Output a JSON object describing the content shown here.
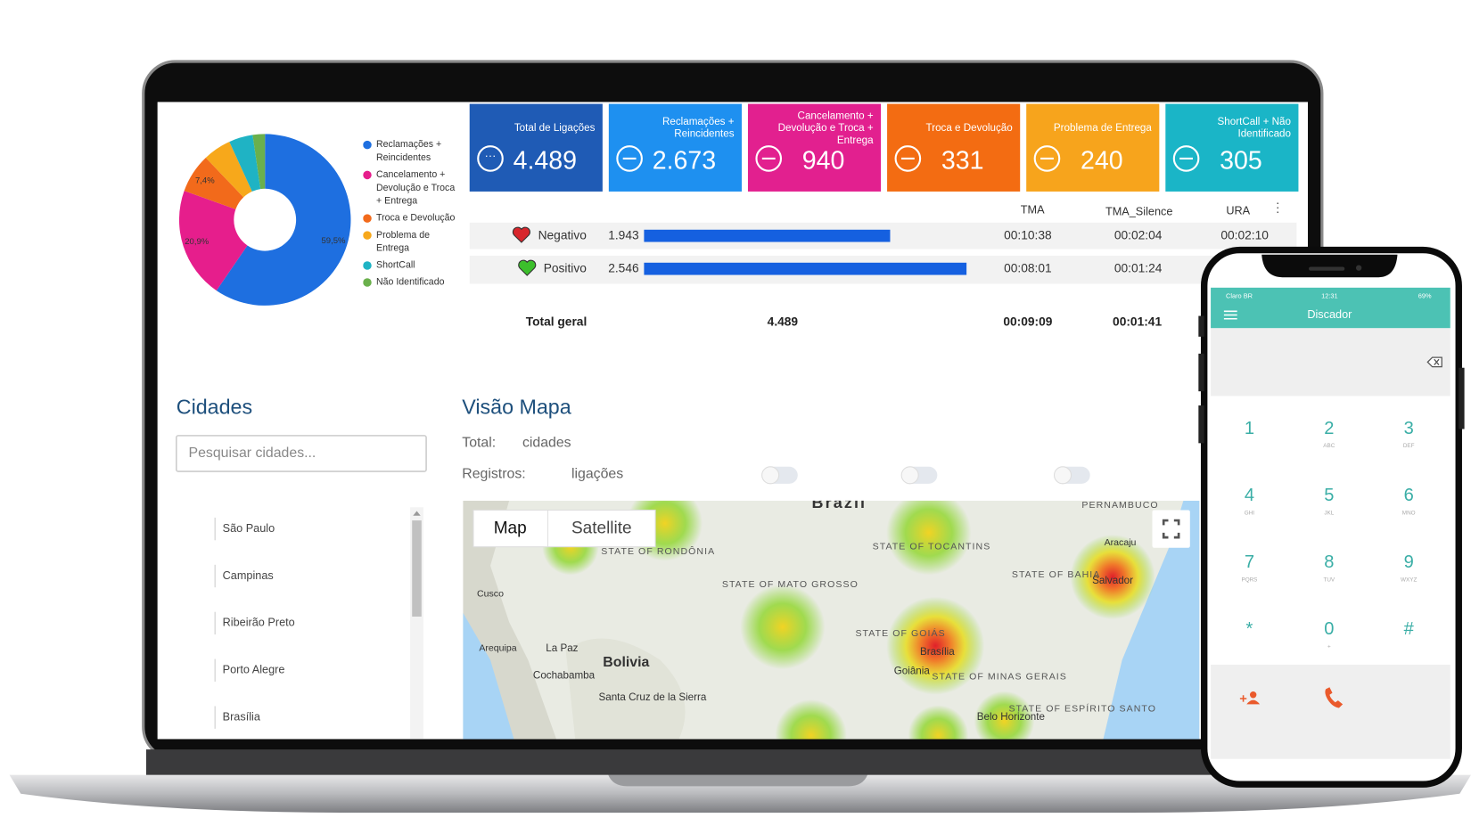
{
  "chart_data": {
    "type": "pie",
    "categories": [
      "Reclamações + Reincidentes",
      "Cancelamento + Devolução e Troca + Entrega",
      "Troca e Devolução",
      "Problema de Entrega",
      "ShortCall",
      "Não Identificado"
    ],
    "values": [
      59.5,
      20.9,
      7.4,
      5.3,
      4.5,
      2.3
    ],
    "value_labels": [
      "59,5%",
      "20,9%",
      "7,4%",
      null,
      null,
      null
    ],
    "colors": [
      "#1e6fe0",
      "#e61e8c",
      "#f26a1b",
      "#f7a81b",
      "#1fb3c4",
      "#6ab04c"
    ]
  },
  "cards": [
    {
      "title": "Total de Ligações",
      "value": "4.489",
      "color": "#1f5bb5"
    },
    {
      "title": "Reclamações + Reincidentes",
      "value": "2.673",
      "color": "#1e90f0"
    },
    {
      "title": "Cancelamento + Devolução e Troca + Entrega",
      "value": "940",
      "color": "#e2208f"
    },
    {
      "title": "Troca e Devolução",
      "value": "331",
      "color": "#f36c12"
    },
    {
      "title": "Problema de Entrega",
      "value": "240",
      "color": "#f7a41c"
    },
    {
      "title": "ShortCall + Não Identificado",
      "value": "305",
      "color": "#1ab5c7"
    }
  ],
  "table": {
    "headers": [
      "TMA",
      "TMA_Silence",
      "URA"
    ],
    "bar_color": "#1560e0",
    "rows": [
      {
        "label": "Negativo",
        "count": {
          "value": 1943,
          "label": "1.943"
        },
        "tma": "00:10:38",
        "tma_silence": "00:02:04",
        "ura": "00:02:10"
      },
      {
        "label": "Positivo",
        "count": {
          "value": 2546,
          "label": "2.546"
        },
        "tma": "00:08:01",
        "tma_silence": "00:01:24"
      }
    ],
    "total": {
      "label": "Total geral",
      "count": "4.489",
      "tma": "00:09:09",
      "tma_silence": "00:01:41"
    }
  },
  "cities": {
    "title": "Cidades",
    "search_placeholder": "Pesquisar cidades...",
    "items": [
      "São Paulo",
      "Campinas",
      "Ribeirão Preto",
      "Porto Alegre",
      "Brasília"
    ]
  },
  "map": {
    "title": "Visão Mapa",
    "total_label": "Total:",
    "total_unit": "cidades",
    "records_label": "Registros:",
    "records_unit": "ligações",
    "tabs": [
      "Map",
      "Satellite"
    ],
    "places": [
      "Brazil",
      "STATE OF TOCANTINS",
      "STATE OF MATO GROSSO",
      "STATE OF GOIÁS",
      "Brasília",
      "Goiânia",
      "STATE OF MINAS GERAIS",
      "STATE OF BAHIA",
      "Salvador",
      "Aracaju",
      "PERNAMBUCO",
      "Bolivia",
      "La Paz",
      "Cochabamba",
      "Santa Cruz de la Sierra",
      "Cusco",
      "Arequipa",
      "STATE OF RONDÔNIA",
      "Belo Horizonte",
      "STATE OF ESPÍRITO SANTO"
    ]
  },
  "phone": {
    "carrier": "Claro BR",
    "time": "12:31",
    "battery": "69%",
    "title": "Discador",
    "keys": [
      {
        "digit": "1"
      },
      {
        "digit": "2",
        "letters": "ABC"
      },
      {
        "digit": "3",
        "letters": "DEF"
      },
      {
        "digit": "4",
        "letters": "GHI"
      },
      {
        "digit": "5",
        "letters": "JKL"
      },
      {
        "digit": "6",
        "letters": "MNO"
      },
      {
        "digit": "7",
        "letters": "PQRS"
      },
      {
        "digit": "8",
        "letters": "TUV"
      },
      {
        "digit": "9",
        "letters": "WXYZ"
      },
      {
        "digit": "*"
      },
      {
        "digit": "0",
        "letters": "+"
      },
      {
        "digit": "#"
      }
    ]
  }
}
